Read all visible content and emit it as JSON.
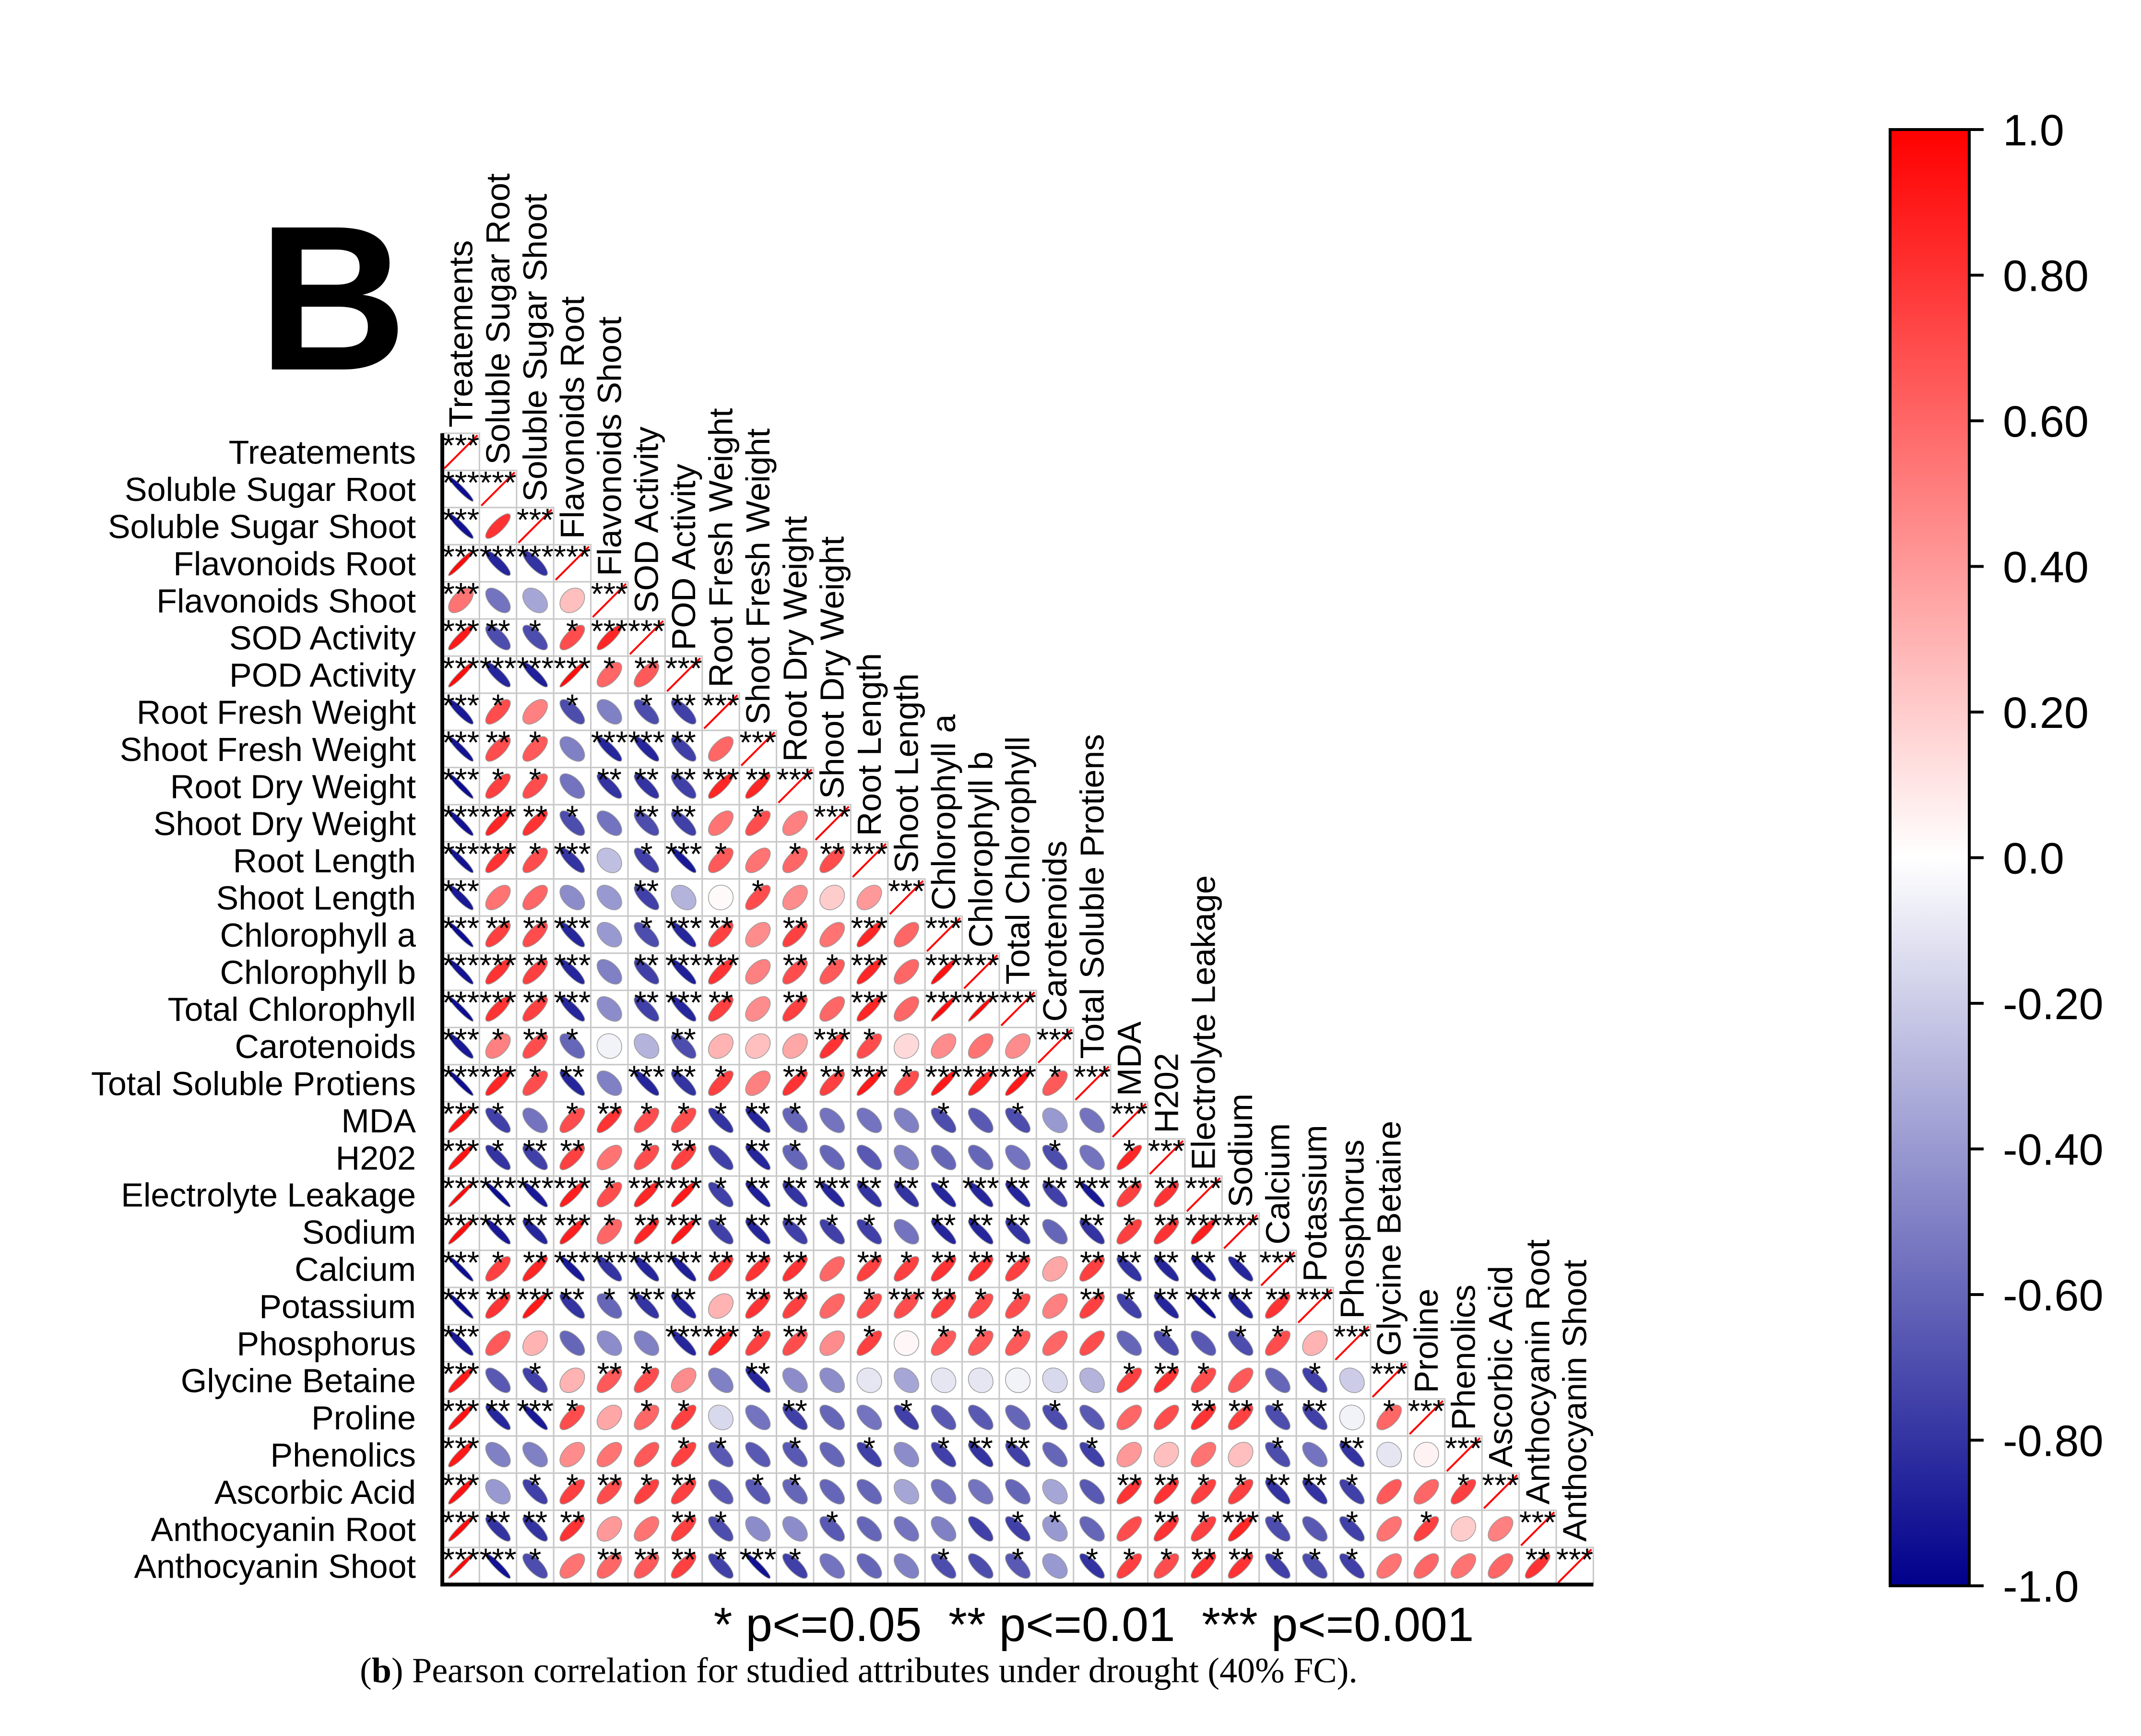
{
  "panel_letter": "B",
  "caption": {
    "panel": "b",
    "text": ") Pearson correlation for studied attributes under drought (40% FC)."
  },
  "significance_note": "* p<=0.05  ** p<=0.01  *** p<=0.001",
  "colors": {
    "negative": "#00008b",
    "zero": "#ffffff",
    "positive": "#ff0000",
    "grid": "#c8c8c8"
  },
  "chart_data": {
    "type": "heatmap",
    "subtype": "lower-triangle correlation ellipse plot",
    "method": "Pearson correlation",
    "variables": [
      "Treatements",
      "Soluble Sugar Root",
      "Soluble Sugar Shoot",
      "Flavonoids Root",
      "Flavonoids Shoot",
      "SOD Activity",
      "POD Activity",
      "Root Fresh Weight",
      "Shoot Fresh Weight",
      "Root Dry Weight",
      "Shoot Dry Weight",
      "Root Length",
      "Shoot Length",
      "Chlorophyll a",
      "Chlorophyll b",
      "Total Chlorophyll",
      "Carotenoids",
      "Total Soluble Protiens",
      "MDA",
      "H202",
      "Electrolyte Leakage",
      "Sodium",
      "Calcium",
      "Potassium",
      "Phosphorus",
      "Glycine Betaine",
      "Proline",
      "Phenolics",
      "Ascorbic Acid",
      "Anthocyanin Root",
      "Anthocyanin Shoot"
    ],
    "colorbar": {
      "range": [
        -1.0,
        1.0
      ],
      "ticks": [
        "1.0",
        "0.80",
        "0.60",
        "0.40",
        "0.20",
        "0.0",
        "-0.20",
        "-0.40",
        "-0.60",
        "-0.80",
        "-1.0"
      ]
    },
    "matrix": [
      [
        1.0
      ],
      [
        -0.95,
        1.0
      ],
      [
        -0.93,
        0.8,
        1.0
      ],
      [
        0.96,
        -0.85,
        -0.8,
        1.0
      ],
      [
        0.55,
        -0.55,
        -0.35,
        0.25,
        1.0
      ],
      [
        0.9,
        -0.7,
        -0.7,
        0.7,
        0.85,
        1.0
      ],
      [
        0.95,
        -0.85,
        -0.88,
        0.95,
        0.6,
        0.65,
        1.0
      ],
      [
        -0.9,
        0.7,
        0.5,
        -0.7,
        -0.5,
        -0.7,
        -0.75,
        1.0
      ],
      [
        -0.93,
        0.7,
        0.65,
        -0.5,
        -0.85,
        -0.85,
        -0.75,
        0.6,
        1.0
      ],
      [
        -0.95,
        0.75,
        0.7,
        -0.55,
        -0.8,
        -0.8,
        -0.75,
        0.85,
        0.85,
        1.0
      ],
      [
        -0.93,
        0.85,
        0.8,
        -0.7,
        -0.55,
        -0.7,
        -0.75,
        0.55,
        0.7,
        0.5,
        1.0
      ],
      [
        -0.93,
        0.8,
        0.7,
        -0.8,
        -0.25,
        -0.75,
        -0.9,
        0.65,
        0.55,
        0.6,
        0.7,
        1.0
      ],
      [
        -0.9,
        0.55,
        0.6,
        -0.45,
        -0.4,
        -0.75,
        -0.3,
        0.02,
        0.7,
        0.45,
        0.2,
        0.4,
        1.0
      ],
      [
        -0.95,
        0.75,
        0.7,
        -0.85,
        -0.4,
        -0.7,
        -0.85,
        0.75,
        0.45,
        0.75,
        0.55,
        0.85,
        0.6,
        1.0
      ],
      [
        -0.93,
        0.8,
        0.75,
        -0.85,
        -0.5,
        -0.75,
        -0.88,
        0.8,
        0.5,
        0.7,
        0.65,
        0.85,
        0.6,
        0.93,
        1.0
      ],
      [
        -0.95,
        0.8,
        0.75,
        -0.85,
        -0.45,
        -0.75,
        -0.85,
        0.75,
        0.45,
        0.75,
        0.6,
        0.85,
        0.6,
        0.95,
        0.97,
        1.0
      ],
      [
        -0.9,
        0.5,
        0.7,
        -0.6,
        -0.05,
        -0.3,
        -0.7,
        0.3,
        0.25,
        0.35,
        0.8,
        0.7,
        0.15,
        0.45,
        0.55,
        0.45,
        1.0
      ],
      [
        -0.95,
        0.85,
        0.7,
        -0.85,
        -0.5,
        -0.85,
        -0.8,
        0.75,
        0.5,
        0.8,
        0.75,
        0.9,
        0.7,
        0.9,
        0.85,
        0.9,
        0.65,
        1.0
      ],
      [
        0.93,
        -0.75,
        -0.55,
        0.7,
        0.8,
        0.7,
        0.7,
        -0.8,
        -0.85,
        -0.6,
        -0.55,
        -0.55,
        -0.5,
        -0.7,
        -0.65,
        -0.7,
        -0.4,
        -0.55,
        1.0
      ],
      [
        0.93,
        -0.8,
        -0.75,
        0.75,
        0.55,
        0.7,
        0.75,
        -0.75,
        -0.85,
        -0.6,
        -0.6,
        -0.65,
        -0.5,
        -0.6,
        -0.6,
        -0.55,
        -0.7,
        -0.55,
        0.85,
        1.0
      ],
      [
        0.97,
        -0.95,
        -0.9,
        0.88,
        0.7,
        0.85,
        0.9,
        -0.75,
        -0.88,
        -0.8,
        -0.85,
        -0.8,
        -0.8,
        -0.85,
        -0.85,
        -0.85,
        -0.75,
        -0.9,
        0.75,
        0.8,
        1.0
      ],
      [
        0.95,
        -0.9,
        -0.85,
        0.88,
        0.6,
        0.85,
        0.9,
        -0.75,
        -0.85,
        -0.75,
        -0.75,
        -0.75,
        -0.55,
        -0.85,
        -0.85,
        -0.8,
        -0.6,
        -0.8,
        0.75,
        0.8,
        0.88,
        1.0
      ],
      [
        -0.95,
        0.75,
        0.85,
        -0.9,
        -0.8,
        -0.85,
        -0.88,
        0.8,
        0.8,
        0.8,
        0.6,
        0.75,
        0.75,
        0.8,
        0.8,
        0.75,
        0.35,
        0.75,
        -0.8,
        -0.85,
        -0.88,
        -0.85,
        1.0
      ],
      [
        -0.95,
        0.8,
        0.9,
        -0.8,
        -0.6,
        -0.8,
        -0.85,
        0.3,
        0.8,
        0.75,
        0.6,
        0.7,
        0.7,
        0.75,
        0.7,
        0.7,
        0.5,
        0.75,
        -0.75,
        -0.85,
        -0.93,
        -0.85,
        0.8,
        1.0
      ],
      [
        -0.9,
        0.65,
        0.3,
        -0.6,
        -0.45,
        -0.5,
        -0.85,
        0.85,
        0.75,
        0.7,
        0.45,
        0.75,
        0.03,
        0.65,
        0.65,
        0.65,
        0.6,
        0.7,
        -0.6,
        -0.7,
        -0.65,
        -0.7,
        0.7,
        0.3,
        1.0
      ],
      [
        0.9,
        -0.65,
        -0.75,
        0.3,
        0.65,
        0.7,
        0.45,
        -0.5,
        -0.85,
        -0.45,
        -0.45,
        -0.1,
        -0.35,
        -0.1,
        -0.1,
        -0.05,
        -0.15,
        -0.3,
        0.75,
        0.8,
        0.7,
        0.65,
        -0.6,
        -0.75,
        -0.2,
        1.0
      ],
      [
        0.93,
        -0.85,
        -0.9,
        0.7,
        0.35,
        0.6,
        0.75,
        -0.15,
        -0.55,
        -0.75,
        -0.6,
        -0.55,
        -0.75,
        -0.65,
        -0.65,
        -0.6,
        -0.7,
        -0.65,
        0.6,
        0.7,
        0.8,
        0.75,
        -0.7,
        -0.75,
        -0.05,
        0.6,
        1.0
      ],
      [
        0.9,
        -0.5,
        -0.5,
        0.45,
        0.55,
        0.65,
        0.75,
        -0.65,
        -0.65,
        -0.65,
        -0.6,
        -0.75,
        -0.45,
        -0.75,
        -0.8,
        -0.75,
        -0.6,
        -0.75,
        0.4,
        0.25,
        0.55,
        0.25,
        -0.7,
        -0.55,
        -0.8,
        -0.1,
        0.05,
        1.0
      ],
      [
        0.93,
        -0.4,
        -0.75,
        0.75,
        0.7,
        0.75,
        0.75,
        -0.65,
        -0.65,
        -0.6,
        -0.6,
        -0.6,
        -0.35,
        -0.55,
        -0.55,
        -0.6,
        -0.35,
        -0.65,
        0.8,
        0.8,
        0.75,
        0.75,
        -0.8,
        -0.8,
        -0.75,
        0.65,
        0.6,
        0.75,
        1.0
      ],
      [
        0.95,
        -0.8,
        -0.8,
        0.8,
        0.4,
        0.55,
        0.75,
        -0.7,
        -0.45,
        -0.45,
        -0.65,
        -0.6,
        -0.55,
        -0.5,
        -0.75,
        -0.75,
        -0.4,
        -0.6,
        0.7,
        0.8,
        0.75,
        0.85,
        -0.7,
        -0.65,
        -0.75,
        0.55,
        0.75,
        0.2,
        0.5,
        1.0
      ],
      [
        0.97,
        -0.93,
        -0.7,
        0.55,
        0.6,
        0.65,
        0.75,
        -0.75,
        -0.93,
        -0.75,
        -0.55,
        -0.6,
        -0.5,
        -0.7,
        -0.7,
        -0.65,
        -0.4,
        -0.8,
        0.75,
        0.7,
        0.8,
        0.8,
        -0.75,
        -0.7,
        -0.75,
        0.55,
        0.6,
        0.55,
        0.6,
        0.8,
        1.0
      ]
    ],
    "significance": [
      [
        "***"
      ],
      [
        "***",
        "***"
      ],
      [
        "***",
        "",
        "***"
      ],
      [
        "***",
        "***",
        "***",
        "***"
      ],
      [
        "***",
        "",
        "",
        "",
        "***"
      ],
      [
        "***",
        "**",
        "*",
        "*",
        "***",
        "***"
      ],
      [
        "***",
        "***",
        "***",
        "***",
        "*",
        "**",
        "***"
      ],
      [
        "***",
        "*",
        "",
        "*",
        "",
        "*",
        "**",
        "***"
      ],
      [
        "***",
        "**",
        "*",
        "",
        "***",
        "***",
        "**",
        "",
        "***"
      ],
      [
        "***",
        "*",
        "*",
        "",
        "**",
        "**",
        "**",
        "***",
        "**",
        "***"
      ],
      [
        "***",
        "***",
        "**",
        "*",
        "",
        "**",
        "**",
        "",
        "*",
        "",
        "***"
      ],
      [
        "***",
        "***",
        "*",
        "***",
        "",
        "*",
        "***",
        "*",
        "",
        "*",
        "**",
        "***"
      ],
      [
        "***",
        "",
        "",
        "",
        "",
        "**",
        "",
        "",
        "*",
        "",
        "",
        "",
        "***"
      ],
      [
        "***",
        "**",
        "**",
        "***",
        "",
        "*",
        "***",
        "**",
        "",
        "**",
        "",
        "***",
        "",
        "***"
      ],
      [
        "***",
        "***",
        "**",
        "***",
        "",
        "**",
        "***",
        "***",
        "",
        "**",
        "*",
        "***",
        "",
        "***",
        "***"
      ],
      [
        "***",
        "***",
        "**",
        "***",
        "",
        "**",
        "***",
        "**",
        "",
        "**",
        "",
        "***",
        "",
        "***",
        "***",
        "***"
      ],
      [
        "***",
        "*",
        "**",
        "*",
        "",
        "",
        "**",
        "",
        "",
        "",
        "***",
        "*",
        "",
        "",
        "",
        "",
        "***"
      ],
      [
        "***",
        "***",
        "*",
        "**",
        "",
        "***",
        "**",
        "*",
        "",
        "**",
        "**",
        "***",
        "*",
        "***",
        "***",
        "***",
        "*",
        "***"
      ],
      [
        "***",
        "*",
        "",
        "*",
        "**",
        "*",
        "*",
        "*",
        "**",
        "*",
        "",
        "",
        "",
        "*",
        "",
        "*",
        "",
        "",
        "***"
      ],
      [
        "***",
        "*",
        "**",
        "**",
        "",
        "*",
        "**",
        "",
        "**",
        "*",
        "",
        "",
        "",
        "",
        "",
        "",
        "*",
        "",
        "*",
        "***"
      ],
      [
        "***",
        "***",
        "***",
        "***",
        "*",
        "***",
        "***",
        "*",
        "**",
        "**",
        "***",
        "**",
        "**",
        "*",
        "***",
        "**",
        "**",
        "***",
        "**",
        "**",
        "***"
      ],
      [
        "***",
        "***",
        "**",
        "***",
        "*",
        "**",
        "***",
        "*",
        "**",
        "**",
        "*",
        "*",
        "",
        "**",
        "**",
        "**",
        "",
        "**",
        "*",
        "**",
        "***",
        "***"
      ],
      [
        "***",
        "*",
        "**",
        "***",
        "***",
        "***",
        "***",
        "**",
        "**",
        "**",
        "",
        "**",
        "*",
        "**",
        "**",
        "**",
        "",
        "**",
        "**",
        "**",
        "**",
        "*",
        "***"
      ],
      [
        "***",
        "**",
        "***",
        "**",
        "*",
        "***",
        "**",
        "",
        "**",
        "**",
        "",
        "*",
        "***",
        "**",
        "*",
        "*",
        "",
        "**",
        "*",
        "**",
        "***",
        "**",
        "**",
        "***"
      ],
      [
        "***",
        "",
        "",
        "",
        "",
        "",
        "***",
        "***",
        "*",
        "**",
        "",
        "*",
        "",
        "*",
        "*",
        "*",
        "",
        "",
        "",
        "*",
        "",
        "*",
        "*",
        "",
        "***"
      ],
      [
        "***",
        "",
        "*",
        "",
        "**",
        "*",
        "",
        "",
        "**",
        "",
        "",
        "",
        "",
        "",
        "",
        "",
        "",
        "",
        "*",
        "**",
        "*",
        "",
        "",
        "*",
        "",
        "***"
      ],
      [
        "***",
        "**",
        "***",
        "*",
        "",
        "*",
        "*",
        "",
        "",
        "**",
        "",
        "",
        "*",
        "",
        "",
        "",
        "*",
        "",
        "",
        "",
        "**",
        "**",
        "*",
        "**",
        "",
        "*",
        "***"
      ],
      [
        "***",
        "",
        "",
        "",
        "",
        "",
        "*",
        "*",
        "",
        "*",
        "",
        "*",
        "",
        "*",
        "**",
        "**",
        "",
        "*",
        "",
        "",
        "",
        "",
        "*",
        "",
        "**",
        "",
        "",
        "***"
      ],
      [
        "***",
        "",
        "*",
        "*",
        "**",
        "*",
        "**",
        "",
        "*",
        "*",
        "",
        "",
        "",
        "",
        "",
        "",
        "",
        "",
        "**",
        "**",
        "*",
        "*",
        "**",
        "**",
        "*",
        "",
        "",
        "*",
        "***"
      ],
      [
        "***",
        "**",
        "**",
        "**",
        "",
        "",
        "**",
        "*",
        "",
        "",
        "*",
        "",
        "",
        "",
        "",
        "*",
        "*",
        "",
        "",
        "**",
        "*",
        "***",
        "*",
        "",
        "*",
        "",
        "*",
        "",
        "",
        "***"
      ],
      [
        "***",
        "***",
        "*",
        "",
        "**",
        "**",
        "**",
        "*",
        "***",
        "*",
        "",
        "",
        "",
        "*",
        "",
        "*",
        "",
        "*",
        "*",
        "*",
        "**",
        "**",
        "*",
        "*",
        "*",
        "",
        "",
        "",
        "",
        "**",
        "***"
      ]
    ]
  }
}
